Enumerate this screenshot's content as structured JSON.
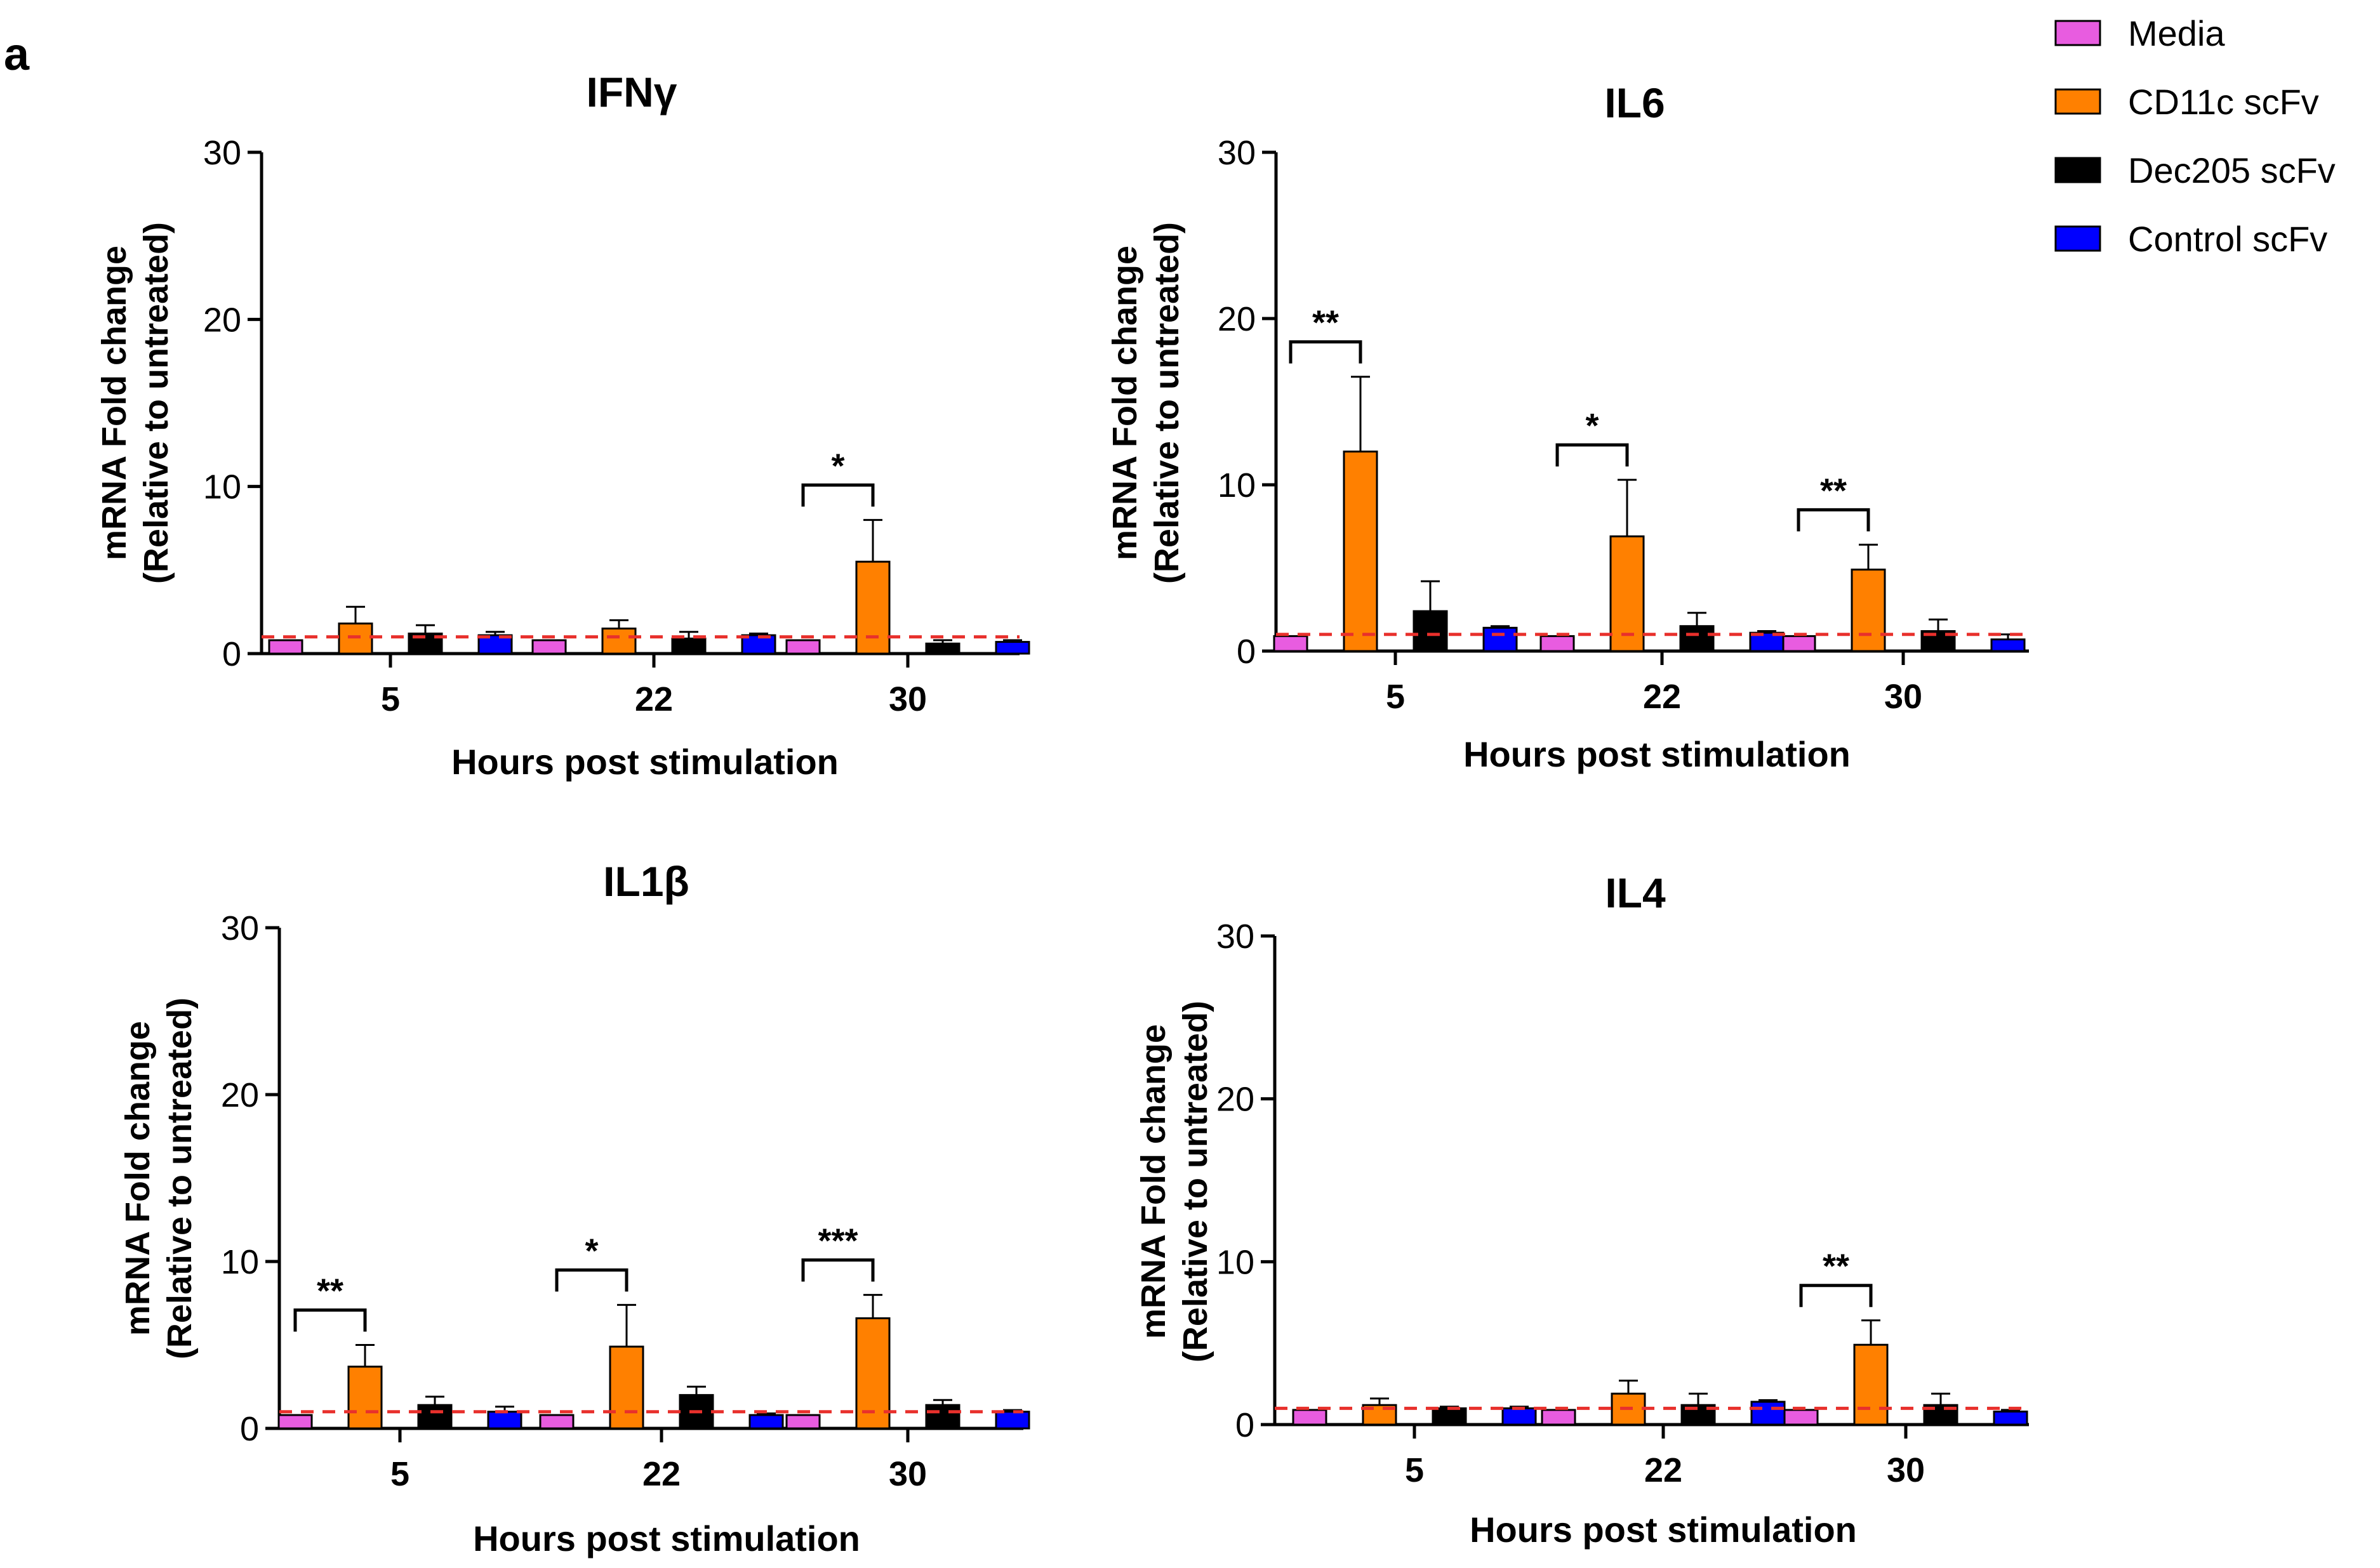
{
  "panel_label": "a",
  "legend": {
    "placement": "top-right",
    "items": [
      {
        "name": "Media",
        "color": "#e85ce0"
      },
      {
        "name": "CD11c scFv",
        "color": "#ff8000"
      },
      {
        "name": "Dec205 scFv",
        "color": "#000000"
      },
      {
        "name": "Control scFv",
        "color": "#0000ff"
      }
    ]
  },
  "chart_data": [
    {
      "type": "bar",
      "title": "IFNγ",
      "xlabel": "Hours post stimulation",
      "ylabel": "mRNA Fold change",
      "ylabel2": "(Relative to untreated)",
      "ylim": [
        0,
        30
      ],
      "yticks": [
        0,
        10,
        20,
        30
      ],
      "categories": [
        "5",
        "22",
        "30"
      ],
      "baseline": 1,
      "series": [
        {
          "name": "Media",
          "values": [
            0.8,
            0.8,
            0.8
          ],
          "errors": [
            0,
            0,
            0
          ]
        },
        {
          "name": "CD11c scFv",
          "values": [
            1.8,
            1.5,
            5.5
          ],
          "errors": [
            1.0,
            0.5,
            2.5
          ]
        },
        {
          "name": "Dec205 scFv",
          "values": [
            1.2,
            0.9,
            0.6
          ],
          "errors": [
            0.5,
            0.4,
            0.2
          ]
        },
        {
          "name": "Control scFv",
          "values": [
            1.1,
            1.1,
            0.7
          ],
          "errors": [
            0.2,
            0.1,
            0.1
          ]
        }
      ],
      "significance": [
        {
          "category": "30",
          "label": "*"
        }
      ]
    },
    {
      "type": "bar",
      "title": "IL6",
      "xlabel": "Hours post stimulation",
      "ylabel": "mRNA Fold change",
      "ylabel2": "(Relative to untreated)",
      "ylim": [
        0,
        30
      ],
      "yticks": [
        0,
        10,
        20,
        30
      ],
      "categories": [
        "5",
        "22",
        "30"
      ],
      "baseline": 1,
      "series": [
        {
          "name": "Media",
          "values": [
            0.9,
            0.9,
            0.9
          ],
          "errors": [
            0,
            0,
            0
          ]
        },
        {
          "name": "CD11c scFv",
          "values": [
            12.0,
            6.9,
            4.9
          ],
          "errors": [
            4.5,
            3.4,
            1.5
          ]
        },
        {
          "name": "Dec205 scFv",
          "values": [
            2.4,
            1.5,
            1.2
          ],
          "errors": [
            1.8,
            0.8,
            0.7
          ]
        },
        {
          "name": "Control scFv",
          "values": [
            1.4,
            1.1,
            0.7
          ],
          "errors": [
            0.1,
            0.1,
            0.3
          ]
        }
      ],
      "significance": [
        {
          "category": "5",
          "label": "**"
        },
        {
          "category": "22",
          "label": "*"
        },
        {
          "category": "30",
          "label": "**"
        }
      ]
    },
    {
      "type": "bar",
      "title": "IL1β",
      "xlabel": "Hours post stimulation",
      "ylabel": "mRNA Fold change",
      "ylabel2": "(Relative to untreated)",
      "ylim": [
        0,
        30
      ],
      "yticks": [
        0,
        10,
        20,
        30
      ],
      "categories": [
        "5",
        "22",
        "30"
      ],
      "baseline": 1,
      "series": [
        {
          "name": "Media",
          "values": [
            0.8,
            0.8,
            0.8
          ],
          "errors": [
            0,
            0,
            0
          ]
        },
        {
          "name": "CD11c scFv",
          "values": [
            3.7,
            4.9,
            6.6
          ],
          "errors": [
            1.3,
            2.5,
            1.4
          ]
        },
        {
          "name": "Dec205 scFv",
          "values": [
            1.4,
            2.0,
            1.4
          ],
          "errors": [
            0.5,
            0.5,
            0.3
          ]
        },
        {
          "name": "Control scFv",
          "values": [
            1.0,
            0.8,
            1.0
          ],
          "errors": [
            0.3,
            0.1,
            0.1
          ]
        }
      ],
      "significance": [
        {
          "category": "5",
          "label": "**"
        },
        {
          "category": "22",
          "label": "*"
        },
        {
          "category": "30",
          "label": "***"
        }
      ]
    },
    {
      "type": "bar",
      "title": "IL4",
      "xlabel": "Hours post stimulation",
      "ylabel": "mRNA Fold change",
      "ylabel2": "(Relative to untreated)",
      "ylim": [
        0,
        30
      ],
      "yticks": [
        0,
        10,
        20,
        30
      ],
      "categories": [
        "5",
        "22",
        "30"
      ],
      "baseline": 1,
      "series": [
        {
          "name": "Media",
          "values": [
            0.9,
            0.9,
            0.9
          ],
          "errors": [
            0,
            0,
            0
          ]
        },
        {
          "name": "CD11c scFv",
          "values": [
            1.2,
            1.9,
            4.9
          ],
          "errors": [
            0.4,
            0.8,
            1.5
          ]
        },
        {
          "name": "Dec205 scFv",
          "values": [
            1.0,
            1.2,
            1.2
          ],
          "errors": [
            0.1,
            0.7,
            0.7
          ]
        },
        {
          "name": "Control scFv",
          "values": [
            1.0,
            1.4,
            0.8
          ],
          "errors": [
            0.1,
            0.1,
            0.1
          ]
        }
      ],
      "significance": [
        {
          "category": "30",
          "label": "**"
        }
      ]
    }
  ]
}
